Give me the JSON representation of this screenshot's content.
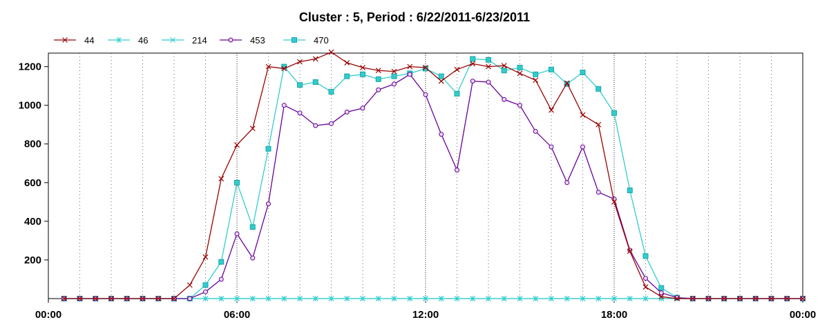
{
  "chart_data": {
    "type": "line",
    "title": "Cluster : 5, Period : 6/22/2011-6/23/2011",
    "xlabel": "",
    "ylabel": "",
    "x_unit": "hours",
    "xlim": [
      0,
      24
    ],
    "ylim": [
      0,
      1270
    ],
    "x_tick_values": [
      0,
      6,
      12,
      18,
      24
    ],
    "x_tick_labels": [
      "00:00",
      "06:00",
      "12:00",
      "18:00",
      "00:00"
    ],
    "y_ticks": [
      200,
      400,
      600,
      800,
      1000,
      1200
    ],
    "grid": "vertical dotted",
    "legend_position": "top-left",
    "x": [
      0.5,
      1.0,
      1.5,
      2.0,
      2.5,
      3.0,
      3.5,
      4.0,
      4.5,
      5.0,
      5.5,
      6.0,
      6.5,
      7.0,
      7.5,
      8.0,
      8.5,
      9.0,
      9.5,
      10.0,
      10.5,
      11.0,
      11.5,
      12.0,
      12.5,
      13.0,
      13.5,
      14.0,
      14.5,
      15.0,
      15.5,
      16.0,
      16.5,
      17.0,
      17.5,
      18.0,
      18.5,
      19.0,
      19.5,
      20.0,
      20.5,
      21.0,
      21.5,
      22.0,
      22.5,
      23.0,
      23.5,
      24.0
    ],
    "series": [
      {
        "name": "44",
        "color": "#990000",
        "marker": "x",
        "values": [
          0,
          0,
          0,
          0,
          0,
          0,
          0,
          0,
          70,
          215,
          620,
          795,
          880,
          1200,
          1190,
          1225,
          1240,
          1275,
          1220,
          1195,
          1180,
          1175,
          1200,
          1195,
          1125,
          1185,
          1215,
          1200,
          1205,
          1165,
          1130,
          975,
          1115,
          950,
          900,
          500,
          245,
          60,
          10,
          0,
          0,
          0,
          0,
          0,
          0,
          0,
          0,
          0
        ]
      },
      {
        "name": "46",
        "color": "#33cccc",
        "marker": "*",
        "values": [
          0,
          0,
          0,
          0,
          0,
          0,
          0,
          0,
          0,
          0,
          0,
          0,
          0,
          0,
          0,
          0,
          0,
          0,
          0,
          0,
          0,
          0,
          0,
          0,
          0,
          0,
          0,
          0,
          0,
          0,
          0,
          0,
          0,
          0,
          0,
          0,
          0,
          0,
          0,
          0,
          0,
          0,
          0,
          0,
          0,
          0,
          0,
          0
        ]
      },
      {
        "name": "214",
        "color": "#33cccc",
        "marker": "x",
        "values": [
          0,
          0,
          0,
          0,
          0,
          0,
          0,
          0,
          0,
          0,
          0,
          0,
          0,
          0,
          0,
          0,
          0,
          0,
          0,
          0,
          0,
          0,
          0,
          0,
          0,
          0,
          0,
          0,
          0,
          0,
          0,
          0,
          0,
          0,
          0,
          0,
          0,
          0,
          0,
          0,
          0,
          0,
          0,
          0,
          0,
          0,
          0,
          0
        ]
      },
      {
        "name": "453",
        "color": "#660099",
        "marker": "o",
        "values": [
          0,
          0,
          0,
          0,
          0,
          0,
          0,
          0,
          0,
          35,
          100,
          335,
          210,
          490,
          1000,
          960,
          895,
          905,
          965,
          985,
          1080,
          1110,
          1160,
          1055,
          850,
          665,
          1125,
          1120,
          1030,
          1000,
          865,
          785,
          600,
          785,
          550,
          515,
          250,
          105,
          30,
          5,
          0,
          0,
          0,
          0,
          0,
          0,
          0,
          0
        ]
      },
      {
        "name": "470",
        "color": "#33cccc",
        "marker": "s",
        "values": [
          0,
          0,
          0,
          0,
          0,
          0,
          0,
          0,
          0,
          70,
          190,
          600,
          370,
          775,
          1200,
          1105,
          1120,
          1070,
          1150,
          1160,
          1135,
          1150,
          1165,
          1190,
          1150,
          1060,
          1240,
          1235,
          1180,
          1195,
          1160,
          1185,
          1110,
          1170,
          1085,
          960,
          560,
          220,
          55,
          5,
          0,
          0,
          0,
          0,
          0,
          0,
          0,
          0
        ]
      }
    ]
  }
}
